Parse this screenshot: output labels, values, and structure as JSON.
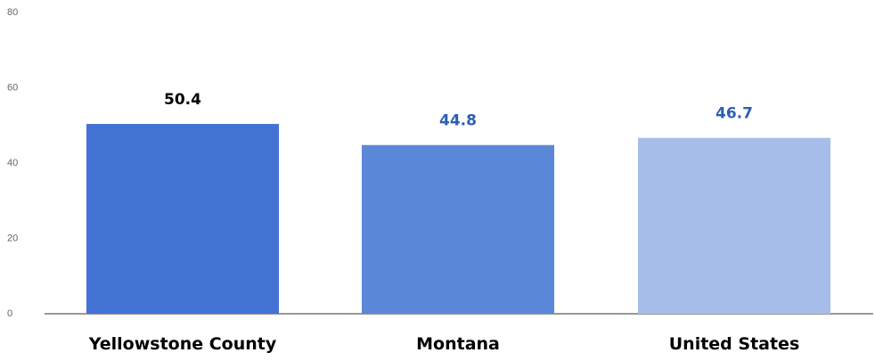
{
  "chart_data": {
    "type": "bar",
    "categories": [
      "Yellowstone County",
      "Montana",
      "United States"
    ],
    "values": [
      50.4,
      44.8,
      46.7
    ],
    "value_labels": [
      "50.4",
      "44.8",
      "46.7"
    ],
    "bar_colors": [
      "#4472d4",
      "#5b87d8",
      "#a7bde9"
    ],
    "label_colors": [
      "#000000",
      "#2f5fb3",
      "#2f5fb3"
    ],
    "yticks": [
      0,
      20,
      40,
      60,
      80
    ],
    "ytick_labels": [
      "0",
      "20",
      "40",
      "60",
      "80"
    ],
    "ylim": [
      0,
      80
    ],
    "grid": false,
    "legend": "none",
    "title": "",
    "xlabel": "",
    "ylabel": ""
  }
}
